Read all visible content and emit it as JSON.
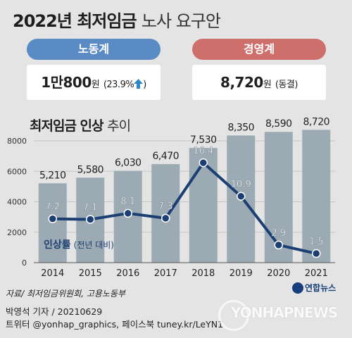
{
  "header": {
    "title_main": "2022년 최저임금",
    "title_sub": "노사 요구안"
  },
  "labor": {
    "label": "노동계",
    "amount_man": "1만800",
    "unit": "원",
    "note_open": "(23.9%",
    "note_close": ")",
    "color": "#5b8bc4"
  },
  "management": {
    "label": "경영계",
    "amount": "8,720",
    "unit": "원",
    "note": "(동결)",
    "color": "#cf6f6b"
  },
  "chart_title": {
    "main": "최저임금 인상",
    "sub": "추이"
  },
  "series_label": {
    "main": "인상률",
    "sub": "(전년 대비)"
  },
  "chart_data": {
    "type": "bar",
    "categories": [
      "2014",
      "2015",
      "2016",
      "2017",
      "2018",
      "2019",
      "2020",
      "2021"
    ],
    "series": [
      {
        "values": [
          5210,
          5580,
          6030,
          6470,
          7530,
          8350,
          8590,
          8720
        ],
        "labels": [
          "5,210",
          "5,580",
          "6,030",
          "6,470",
          "7,530",
          "8,350",
          "8,590",
          "8,720"
        ],
        "color": "#9caab3"
      },
      {
        "name": "인상률",
        "type": "line",
        "values": [
          7.2,
          7.1,
          8.1,
          7.3,
          16.4,
          10.9,
          2.9,
          1.5
        ],
        "labels": [
          "7.2",
          "7.1",
          "8.1",
          "7.3",
          "16.4",
          "10.9",
          "2.9",
          "1.5"
        ],
        "color": "#1c3f73"
      }
    ],
    "yticks": [
      "0",
      "2000",
      "4000",
      "6000",
      "8000"
    ],
    "ylim": [
      0,
      8000
    ],
    "line_ylim": [
      0,
      20
    ],
    "grid": true
  },
  "footer": {
    "source": "자료/ 최저임금위원회, 고용노동부",
    "reporter": "박영석 기자 /  20210629",
    "social": "트위터 @yonhap_graphics, 페이스북 tuney.kr/LeYN1",
    "logo": "연합뉴스",
    "watermark": "YONHAPNEWS"
  }
}
